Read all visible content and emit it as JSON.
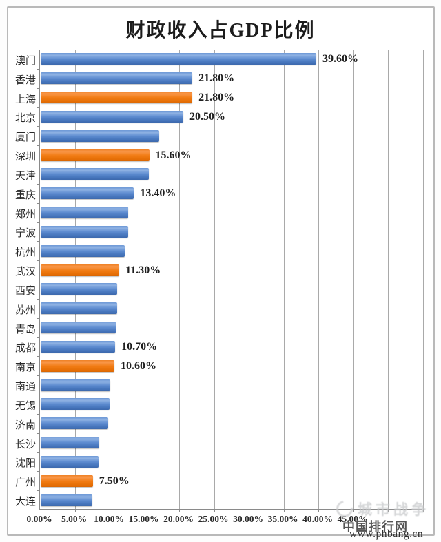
{
  "title": "财政收入占GDP比例",
  "chart_data": {
    "type": "bar",
    "orientation": "horizontal",
    "title": "财政收入占GDP比例",
    "xlabel": "",
    "ylabel": "",
    "unit": "%",
    "x_axis": {
      "min": 0,
      "max_labeled": 45,
      "grid_extends_to_percent": 55,
      "tick_step": 5,
      "grid": true,
      "tick_labels": [
        "0.00%",
        "5.00%",
        "10.00%",
        "15.00%",
        "20.00%",
        "25.00%",
        "30.00%",
        "35.00%",
        "40.00%",
        "45.00%"
      ]
    },
    "bars": [
      {
        "city": "澳门",
        "value": 39.6,
        "label": "39.60%",
        "color": "blue"
      },
      {
        "city": "香港",
        "value": 21.8,
        "label": "21.80%",
        "color": "blue"
      },
      {
        "city": "上海",
        "value": 21.8,
        "label": "21.80%",
        "color": "orange"
      },
      {
        "city": "北京",
        "value": 20.5,
        "label": "20.50%",
        "color": "blue"
      },
      {
        "city": "厦门",
        "value": 17.0,
        "label": "",
        "color": "blue"
      },
      {
        "city": "深圳",
        "value": 15.6,
        "label": "15.60%",
        "color": "orange"
      },
      {
        "city": "天津",
        "value": 15.5,
        "label": "",
        "color": "blue"
      },
      {
        "city": "重庆",
        "value": 13.4,
        "label": "13.40%",
        "color": "blue"
      },
      {
        "city": "郑州",
        "value": 12.6,
        "label": "",
        "color": "blue"
      },
      {
        "city": "宁波",
        "value": 12.6,
        "label": "",
        "color": "blue"
      },
      {
        "city": "杭州",
        "value": 12.1,
        "label": "",
        "color": "blue"
      },
      {
        "city": "武汉",
        "value": 11.3,
        "label": "11.30%",
        "color": "orange"
      },
      {
        "city": "西安",
        "value": 11.0,
        "label": "",
        "color": "blue"
      },
      {
        "city": "苏州",
        "value": 11.0,
        "label": "",
        "color": "blue"
      },
      {
        "city": "青岛",
        "value": 10.8,
        "label": "",
        "color": "blue"
      },
      {
        "city": "成都",
        "value": 10.7,
        "label": "10.70%",
        "color": "blue"
      },
      {
        "city": "南京",
        "value": 10.6,
        "label": "10.60%",
        "color": "orange"
      },
      {
        "city": "南通",
        "value": 10.0,
        "label": "",
        "color": "blue"
      },
      {
        "city": "无锡",
        "value": 9.9,
        "label": "",
        "color": "blue"
      },
      {
        "city": "济南",
        "value": 9.7,
        "label": "",
        "color": "blue"
      },
      {
        "city": "长沙",
        "value": 8.4,
        "label": "",
        "color": "blue"
      },
      {
        "city": "沈阳",
        "value": 8.3,
        "label": "",
        "color": "blue"
      },
      {
        "city": "广州",
        "value": 7.5,
        "label": "7.50%",
        "color": "orange"
      },
      {
        "city": "大连",
        "value": 7.4,
        "label": "",
        "color": "blue"
      }
    ],
    "legend": null
  },
  "colors": {
    "blue_bar": "#5B8CCE",
    "orange_bar": "#F0770F",
    "gridline": "#A9A9A9",
    "axis": "#8A8A8A",
    "frame_border": "#B9B9B9",
    "text": "#1F1F1F"
  },
  "watermark": {
    "faint_text": "城市战争",
    "brand": "中国排行网",
    "site": "www.phbang.cn"
  }
}
